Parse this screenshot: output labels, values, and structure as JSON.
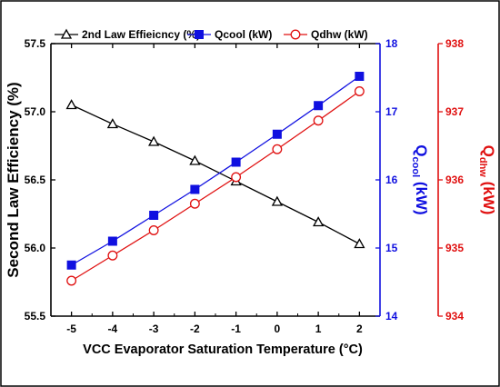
{
  "chart_data": {
    "type": "line",
    "x": [
      -5,
      -4,
      -3,
      -2,
      -1,
      0,
      1,
      2
    ],
    "xlabel": "VCC Evaporator Saturation Temperature (°C)",
    "xlim": [
      -5.5,
      2.5
    ],
    "xticks": [
      "-5",
      "-4",
      "-3",
      "-2",
      "-1",
      "0",
      "1",
      "2"
    ],
    "legend_position": "top",
    "grid": false,
    "axes": [
      {
        "id": "left",
        "label": "Second Law Efficiency (%)",
        "lim": [
          55.5,
          57.5
        ],
        "ticks": [
          "55.5",
          "56.0",
          "56.5",
          "57.0",
          "57.5"
        ],
        "color": "#000000"
      },
      {
        "id": "right1",
        "label_main": "Q",
        "label_sub": "cool",
        "label_unit": "(kW)",
        "lim": [
          14,
          18
        ],
        "ticks": [
          "14",
          "15",
          "16",
          "17",
          "18"
        ],
        "color": "#1010e0"
      },
      {
        "id": "right2",
        "label_main": "Q",
        "label_sub": "dhw",
        "label_unit": "(kW)",
        "lim": [
          934,
          938
        ],
        "ticks": [
          "934",
          "935",
          "936",
          "937",
          "938"
        ],
        "color": "#e01010"
      }
    ],
    "series": [
      {
        "name": "2nd Law Effieicncy (%)",
        "axis": "left",
        "marker": "triangle-open",
        "color": "#000000",
        "values": [
          57.05,
          56.91,
          56.78,
          56.64,
          56.49,
          56.34,
          56.19,
          56.03
        ]
      },
      {
        "name": "Qcool (kW)",
        "axis": "right1",
        "marker": "square-filled",
        "color": "#1010e0",
        "values": [
          14.75,
          15.1,
          15.48,
          15.86,
          16.26,
          16.67,
          17.09,
          17.52
        ]
      },
      {
        "name": "Qdhw (kW)",
        "axis": "right2",
        "marker": "circle-open",
        "color": "#e01010",
        "values": [
          934.52,
          934.89,
          935.26,
          935.65,
          936.04,
          936.45,
          936.87,
          937.3
        ]
      }
    ]
  }
}
